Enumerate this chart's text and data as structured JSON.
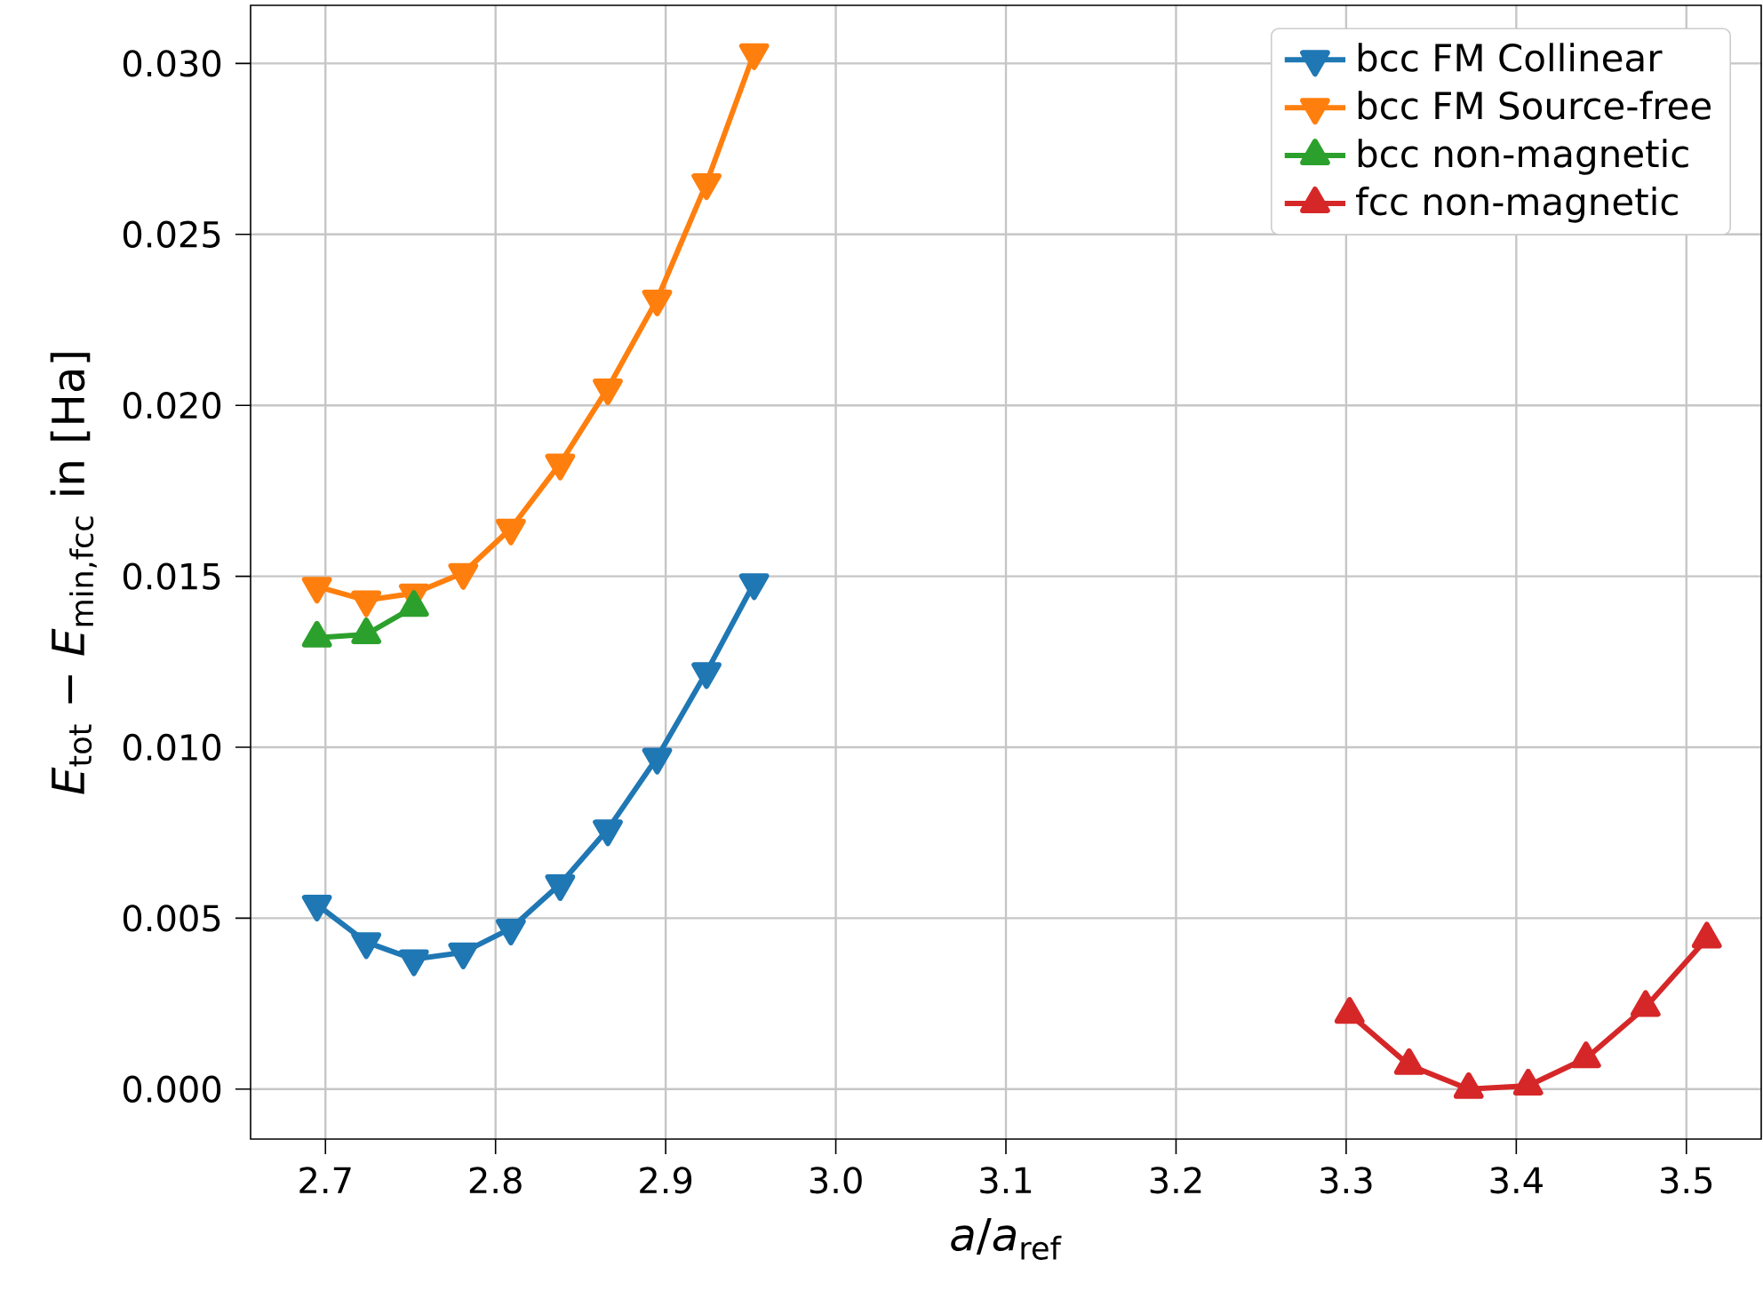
{
  "chart_data": {
    "type": "line",
    "xlabel": "*a*/*a*$_{ref}$",
    "ylabel": "*E*$_{tot}$ − *E*$_{min,fcc}$ in [Ha]",
    "xlim": [
      2.656,
      3.544
    ],
    "ylim": [
      -0.00146,
      0.0317
    ],
    "xticks": [
      {
        "value": 2.7,
        "label": "2.7"
      },
      {
        "value": 2.8,
        "label": "2.8"
      },
      {
        "value": 2.9,
        "label": "2.9"
      },
      {
        "value": 3.0,
        "label": "3.0"
      },
      {
        "value": 3.1,
        "label": "3.1"
      },
      {
        "value": 3.2,
        "label": "3.2"
      },
      {
        "value": 3.3,
        "label": "3.3"
      },
      {
        "value": 3.4,
        "label": "3.4"
      },
      {
        "value": 3.5,
        "label": "3.5"
      }
    ],
    "yticks": [
      {
        "value": 0,
        "label": "0.000"
      },
      {
        "value": 0.005,
        "label": "0.005"
      },
      {
        "value": 0.01,
        "label": "0.010"
      },
      {
        "value": 0.015,
        "label": "0.015"
      },
      {
        "value": 0.02,
        "label": "0.020"
      },
      {
        "value": 0.025,
        "label": "0.025"
      },
      {
        "value": 0.03,
        "label": "0.030"
      }
    ],
    "grid": true,
    "legend": "top right",
    "line_style": "solid",
    "series": [
      {
        "name": "bcc FM Collinear",
        "color": "#1f77b4",
        "marker": "triangle_down",
        "x": [
          2.695,
          2.724,
          2.752,
          2.781,
          2.809,
          2.838,
          2.866,
          2.895,
          2.924,
          2.952
        ],
        "values": [
          0.0054,
          0.0043,
          0.0038,
          0.004,
          0.0047,
          0.006,
          0.0076,
          0.0097,
          0.0122,
          0.0148
        ]
      },
      {
        "name": "bcc FM Source-free",
        "color": "#ff7f0e",
        "marker": "triangle_down",
        "x": [
          2.695,
          2.724,
          2.752,
          2.781,
          2.809,
          2.838,
          2.866,
          2.895,
          2.924,
          2.952
        ],
        "values": [
          0.0147,
          0.0143,
          0.0145,
          0.0151,
          0.0164,
          0.0183,
          0.0205,
          0.0231,
          0.0265,
          0.0303
        ]
      },
      {
        "name": "bcc non-magnetic",
        "color": "#2ca02c",
        "marker": "triangle",
        "x": [
          2.695,
          2.724,
          2.752
        ],
        "values": [
          0.0132,
          0.0133,
          0.0141
        ]
      },
      {
        "name": "fcc non-magnetic",
        "color": "#d62728",
        "marker": "triangle",
        "x": [
          3.302,
          3.337,
          3.372,
          3.407,
          3.441,
          3.476,
          3.512
        ],
        "values": [
          0.0022,
          0.0007,
          0.0,
          0.0001,
          0.0009,
          0.0024,
          0.0044
        ]
      }
    ]
  }
}
